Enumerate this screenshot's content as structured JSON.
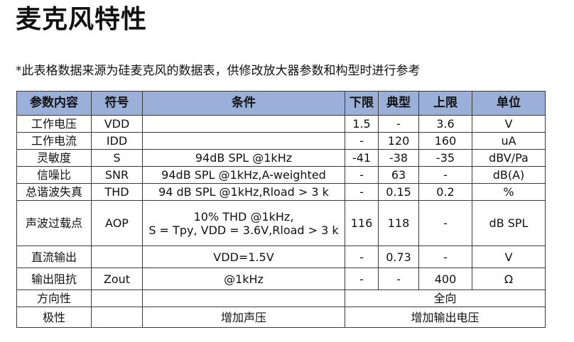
{
  "page": {
    "title": "麦克风特性",
    "note": "*此表格数据来源为硅麦克风的数据表，供修改放大器参数和构型时进行参考"
  },
  "table": {
    "headers": [
      "参数内容",
      "符号",
      "条件",
      "下限",
      "典型",
      "上限",
      "单位"
    ],
    "rows": {
      "voltage": {
        "param": "工作电压",
        "symbol": "VDD",
        "cond": "",
        "min": "1.5",
        "typ": "-",
        "max": "3.6",
        "unit": "V"
      },
      "current": {
        "param": "工作电流",
        "symbol": "IDD",
        "cond": "",
        "min": "-",
        "typ": "120",
        "max": "160",
        "unit": "uA"
      },
      "sensitivity": {
        "param": "灵敏度",
        "symbol": "S",
        "cond": "94dB SPL @1kHz",
        "min": "-41",
        "typ": "-38",
        "max": "-35",
        "unit": "dBV/Pa"
      },
      "snr": {
        "param": "信噪比",
        "symbol": "SNR",
        "cond": "94dB SPL @1kHz,A-weighted",
        "min": "-",
        "typ": "63",
        "max": "-",
        "unit": "dB(A)"
      },
      "thd": {
        "param": "总谐波失真",
        "symbol": "THD",
        "cond": "94 dB SPL @1kHz,Rload > 3 k",
        "min": "-",
        "typ": "0.15",
        "max": "0.2",
        "unit": "%"
      },
      "aop": {
        "param": "声波过载点",
        "symbol": "AOP",
        "cond_line1": "10% THD @1kHz,",
        "cond_line2": "S = Tpy, VDD = 3.6V,Rload > 3 k",
        "min": "116",
        "typ": "118",
        "max": "-",
        "unit": "dB SPL"
      },
      "dc": {
        "param": "直流输出",
        "symbol": "",
        "cond": "VDD=1.5V",
        "min": "-",
        "typ": "0.73",
        "max": "-",
        "unit": "V"
      },
      "zout": {
        "param": "输出阻抗",
        "symbol": "Zout",
        "cond": "@1kHz",
        "min": "-",
        "typ": "-",
        "max": "400",
        "unit": "Ω"
      },
      "directivity": {
        "param": "方向性",
        "symbol": "",
        "cond": "",
        "value": "全向"
      },
      "polarity": {
        "param": "极性",
        "symbol": "",
        "cond": "增加声压",
        "value": "增加输出电压"
      }
    }
  }
}
